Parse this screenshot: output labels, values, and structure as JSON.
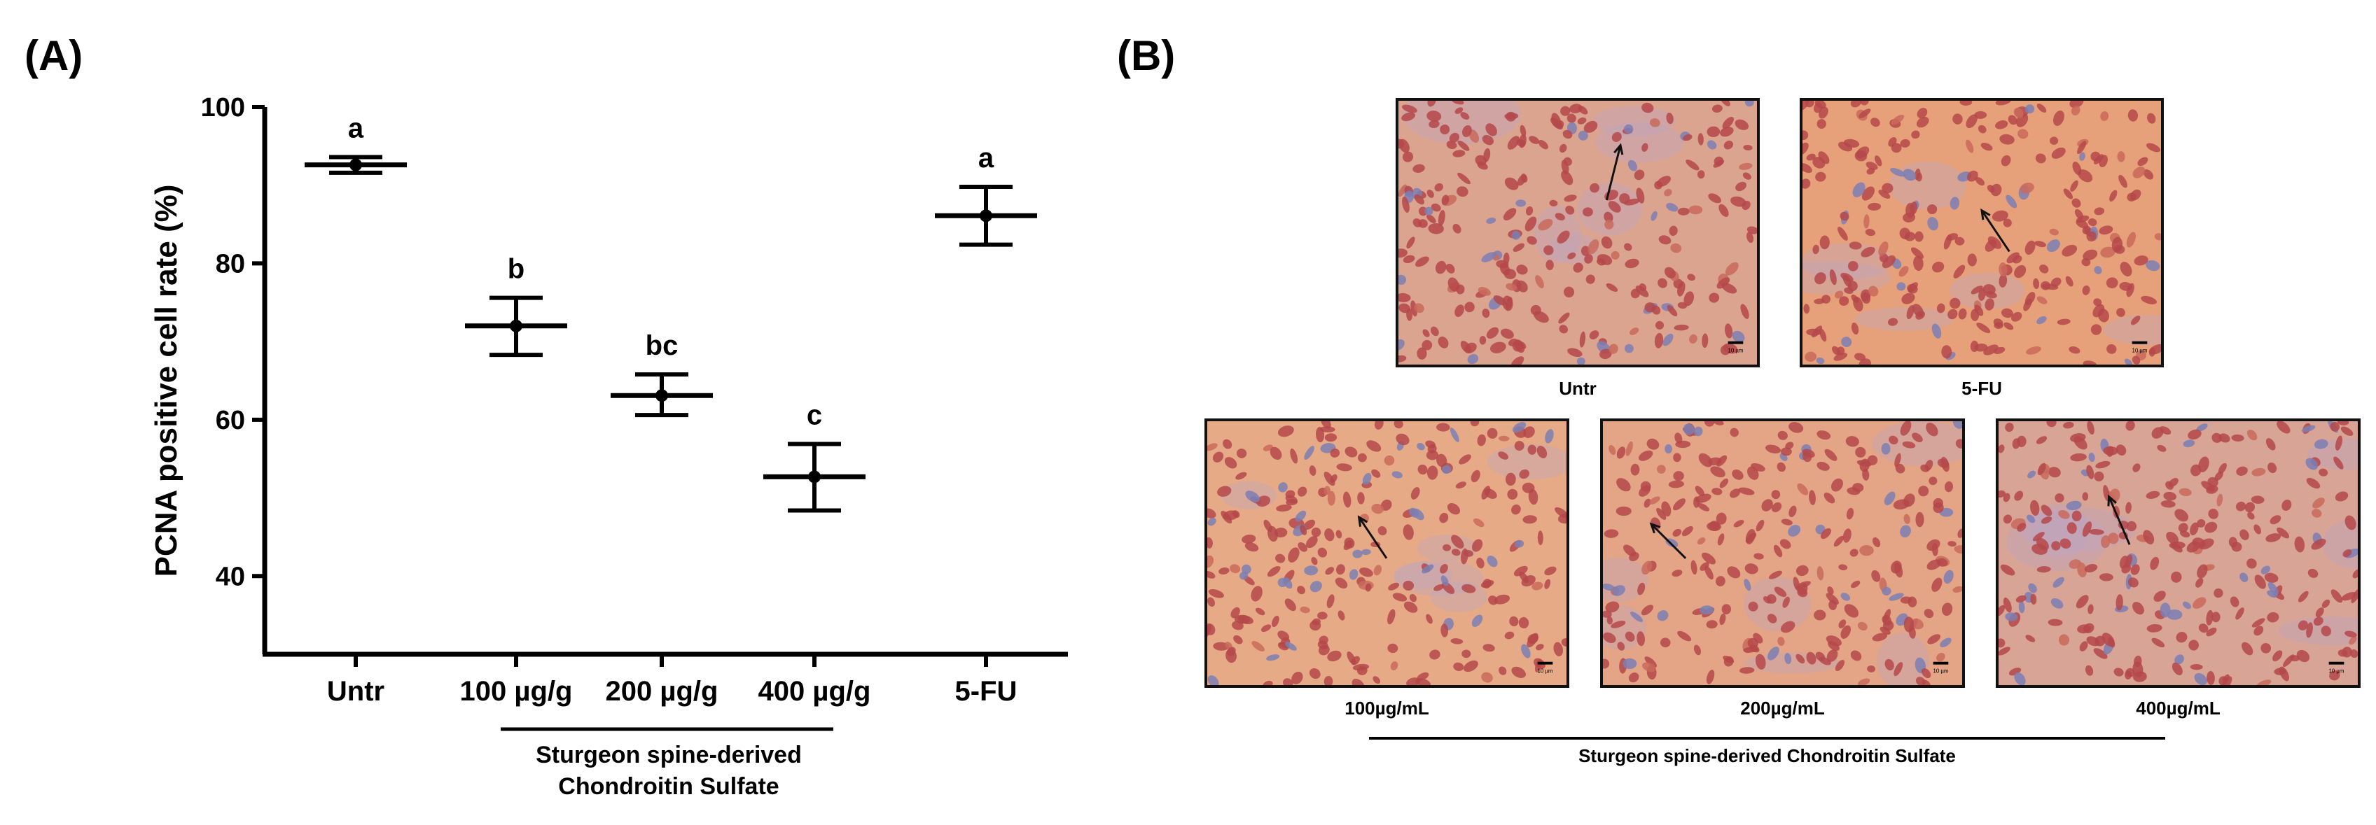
{
  "panel_a": {
    "label": "(A)"
  },
  "panel_b": {
    "label": "(B)",
    "images": [
      {
        "key": "untr",
        "caption": "Untr",
        "scale_bar": "10 µm"
      },
      {
        "key": "5fu",
        "caption": "5-FU",
        "scale_bar": "10 µm"
      },
      {
        "key": "100",
        "caption": "100µg/mL",
        "scale_bar": "10 µm"
      },
      {
        "key": "200",
        "caption": "200µg/mL",
        "scale_bar": "10 µm"
      },
      {
        "key": "400",
        "caption": "400µg/mL",
        "scale_bar": "10 µm"
      }
    ],
    "group_label": "Sturgeon spine-derived Chondroitin Sulfate"
  },
  "chart_data": {
    "type": "scatter",
    "ylabel": "PCNA positive cell rate (%)",
    "ylim": [
      30,
      100
    ],
    "yticks": [
      40,
      60,
      80,
      100
    ],
    "categories": [
      "Untr",
      "100 µg/g",
      "200 µg/g",
      "400 µg/g",
      "5-FU"
    ],
    "means": [
      92.6,
      72.0,
      63.1,
      52.7,
      86.1
    ],
    "error_lower": [
      91.6,
      68.3,
      60.6,
      48.4,
      82.4
    ],
    "error_upper": [
      93.6,
      75.6,
      65.8,
      56.9,
      89.8
    ],
    "significance": [
      "a",
      "b",
      "bc",
      "c",
      "a"
    ],
    "group_label_line1": "Sturgeon spine-derived",
    "group_label_line2": "Chondroitin Sulfate",
    "grid": false,
    "legend": "none"
  }
}
